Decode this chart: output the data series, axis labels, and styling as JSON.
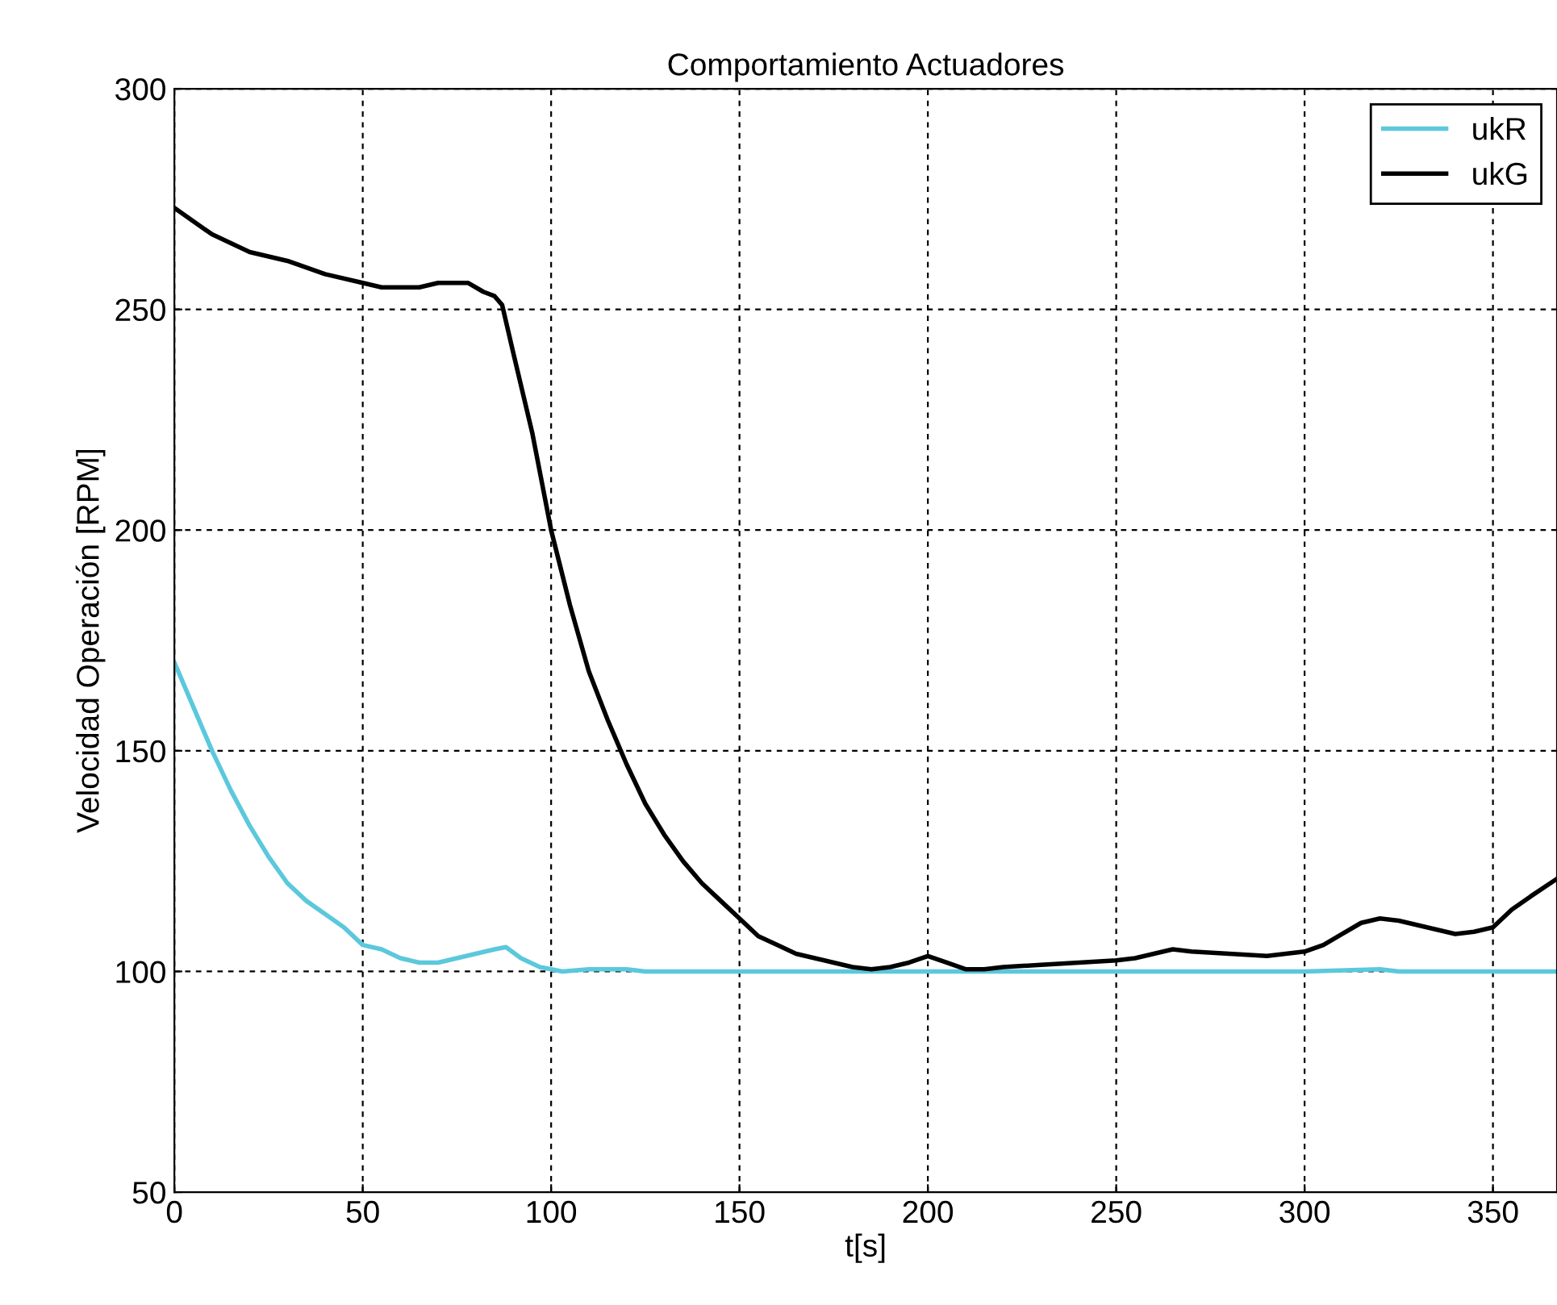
{
  "chart_data": {
    "type": "line",
    "title": "Comportamiento Actuadores",
    "xlabel": "t[s]",
    "ylabel": "Velocidad Operación [RPM]",
    "xlim": [
      0,
      367
    ],
    "ylim": [
      50,
      300
    ],
    "xticks": [
      0,
      50,
      100,
      150,
      200,
      250,
      300,
      350
    ],
    "yticks": [
      50,
      100,
      150,
      200,
      250,
      300
    ],
    "grid": true,
    "legend": "top right",
    "line_style": "solid",
    "series": [
      {
        "name": "ukR",
        "color": "#5bc8dc",
        "x": [
          0,
          5,
          10,
          15,
          20,
          25,
          30,
          35,
          40,
          45,
          50,
          55,
          60,
          65,
          70,
          75,
          80,
          85,
          88,
          92,
          97,
          103,
          110,
          120,
          125,
          200,
          300,
          320,
          325,
          367
        ],
        "values": [
          170,
          160,
          150,
          141,
          133,
          126,
          120,
          116,
          113,
          110,
          106,
          105,
          103,
          102,
          102,
          103,
          104,
          105,
          105.5,
          103,
          101,
          100,
          100.5,
          100.5,
          100,
          100,
          100,
          100.5,
          100,
          100
        ]
      },
      {
        "name": "ukG",
        "color": "#000000",
        "x": [
          0,
          5,
          10,
          15,
          20,
          30,
          40,
          50,
          55,
          65,
          70,
          78,
          82,
          85,
          87,
          90,
          95,
          100,
          105,
          110,
          115,
          120,
          125,
          130,
          135,
          140,
          145,
          150,
          155,
          160,
          165,
          170,
          175,
          180,
          185,
          190,
          195,
          200,
          205,
          210,
          215,
          220,
          230,
          240,
          250,
          255,
          260,
          265,
          270,
          280,
          290,
          300,
          305,
          310,
          315,
          320,
          325,
          330,
          335,
          340,
          345,
          350,
          355,
          360,
          367
        ],
        "values": [
          273,
          270,
          267,
          265,
          263,
          261,
          258,
          256,
          255,
          255,
          256,
          256,
          254,
          253,
          251,
          240,
          222,
          200,
          183,
          168,
          157,
          147,
          138,
          131,
          125,
          120,
          116,
          112,
          108,
          106,
          104,
          103,
          102,
          101,
          100.5,
          101,
          102,
          103.5,
          102,
          100.5,
          100.5,
          101,
          101.5,
          102,
          102.5,
          103,
          104,
          105,
          104.5,
          104,
          103.5,
          104.5,
          106,
          108.5,
          111,
          112,
          111.5,
          110.5,
          109.5,
          108.5,
          109,
          110,
          114,
          117,
          121
        ]
      }
    ]
  }
}
